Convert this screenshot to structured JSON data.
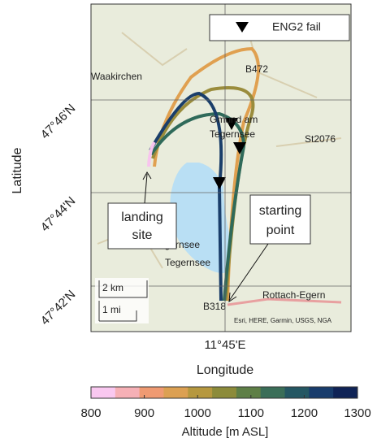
{
  "map": {
    "axis_labels": {
      "y": "Latitude",
      "x": "Longitude"
    },
    "lat_labels": [
      "47°46'N",
      "47°44'N",
      "47°42'N"
    ],
    "lon_labels": [
      "11°45'E"
    ],
    "legend": "ENG2 fail",
    "annotations": {
      "landing": [
        "landing",
        "site"
      ],
      "start": [
        "starting",
        "point"
      ]
    },
    "scale_bar": [
      "2 km",
      "1 mi"
    ],
    "place_labels": [
      "Waakirchen",
      "B472",
      "Gmund am",
      "Tegernsee",
      "St2076",
      "Tegernsee",
      "Tegernsee",
      "Rottach-Egern",
      "B318"
    ],
    "attribution": "Esri, HERE, Garmin, USGS, NGA"
  },
  "colorbar": {
    "label": "Altitude [m ASL]",
    "lim": [
      800,
      1300
    ],
    "ticks": [
      800,
      900,
      1000,
      1100,
      1200,
      1300
    ],
    "colors": [
      "#f9c8f0",
      "#f6b0b6",
      "#ef9a72",
      "#dca052",
      "#b6983f",
      "#8c8b3a",
      "#5e7f46",
      "#3a6e58",
      "#245763",
      "#183c6c",
      "#0f2356"
    ]
  }
}
